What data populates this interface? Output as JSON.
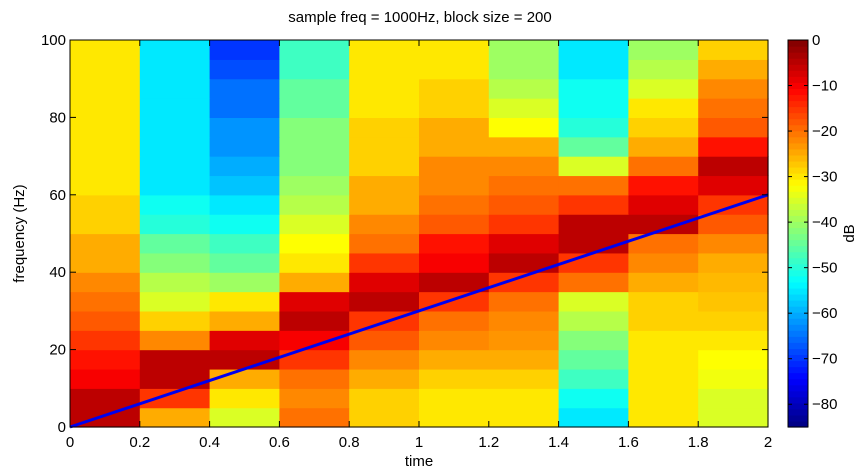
{
  "chart_data": {
    "type": "heatmap",
    "title": "sample freq = 1000Hz, block size = 200",
    "xlabel": "time",
    "ylabel": "frequency (Hz)",
    "xlim": [
      0,
      2
    ],
    "ylim": [
      0,
      100
    ],
    "x_ticks": [
      0,
      0.2,
      0.4,
      0.6,
      0.8,
      1,
      1.2,
      1.4,
      1.6,
      1.8,
      2
    ],
    "y_ticks": [
      0,
      20,
      40,
      60,
      80,
      100
    ],
    "x_tick_labels": [
      "0",
      "0.2",
      "0.4",
      "0.6",
      "0.8",
      "1",
      "1.2",
      "1.4",
      "1.6",
      "1.8",
      "2"
    ],
    "y_tick_labels": [
      "0",
      "20",
      "40",
      "60",
      "80",
      "100"
    ],
    "time_bins": [
      0,
      0.2,
      0.4,
      0.6,
      0.8,
      1,
      1.2,
      1.4,
      1.6,
      1.8,
      2
    ],
    "freq_bin_hz": 5,
    "colorbar": {
      "label": "dB",
      "colormap": "jet",
      "range": [
        -85,
        0
      ],
      "ticks": [
        0,
        -10,
        -20,
        -30,
        -40,
        -50,
        -60,
        -70,
        -80
      ],
      "tick_labels": [
        "0",
        "−10",
        "−20",
        "−30",
        "−40",
        "−50",
        "−60",
        "−70",
        "−80"
      ]
    },
    "z_db": [
      [
        -5,
        -25,
        -35,
        -20,
        -28,
        -30,
        -30,
        -55,
        -30,
        -35
      ],
      [
        -5,
        -15,
        -30,
        -22,
        -28,
        -30,
        -30,
        -52,
        -30,
        -35
      ],
      [
        -10,
        -5,
        -25,
        -20,
        -25,
        -28,
        -28,
        -48,
        -30,
        -33
      ],
      [
        -12,
        -5,
        -5,
        -15,
        -22,
        -25,
        -25,
        -45,
        -30,
        -32
      ],
      [
        -15,
        -22,
        -8,
        -10,
        -18,
        -22,
        -23,
        -42,
        -30,
        -30
      ],
      [
        -18,
        -28,
        -25,
        -5,
        -15,
        -20,
        -22,
        -38,
        -28,
        -28
      ],
      [
        -20,
        -35,
        -30,
        -8,
        -5,
        -15,
        -20,
        -35,
        -28,
        -27
      ],
      [
        -22,
        -38,
        -40,
        -25,
        -8,
        -5,
        -15,
        -20,
        -25,
        -26
      ],
      [
        -25,
        -42,
        -45,
        -30,
        -15,
        -10,
        -5,
        -15,
        -22,
        -25
      ],
      [
        -25,
        -45,
        -48,
        -32,
        -20,
        -12,
        -8,
        -5,
        -20,
        -22
      ],
      [
        -28,
        -50,
        -52,
        -35,
        -22,
        -18,
        -15,
        -5,
        -5,
        -18
      ],
      [
        -28,
        -52,
        -55,
        -38,
        -25,
        -20,
        -18,
        -15,
        -8,
        -15
      ],
      [
        -30,
        -55,
        -58,
        -40,
        -25,
        -22,
        -20,
        -20,
        -12,
        -8
      ],
      [
        -30,
        -55,
        -60,
        -42,
        -28,
        -22,
        -22,
        -35,
        -20,
        -5
      ],
      [
        -30,
        -55,
        -62,
        -42,
        -28,
        -25,
        -25,
        -45,
        -25,
        -12
      ],
      [
        -30,
        -55,
        -62,
        -42,
        -28,
        -25,
        -32,
        -50,
        -28,
        -18
      ],
      [
        -30,
        -55,
        -65,
        -45,
        -30,
        -28,
        -35,
        -52,
        -30,
        -20
      ],
      [
        -30,
        -55,
        -65,
        -45,
        -30,
        -28,
        -38,
        -52,
        -35,
        -22
      ],
      [
        -30,
        -55,
        -68,
        -48,
        -30,
        -30,
        -40,
        -55,
        -38,
        -25
      ],
      [
        -30,
        -55,
        -70,
        -48,
        -30,
        -30,
        -40,
        -55,
        -40,
        -28
      ]
    ],
    "series": [
      {
        "type": "line",
        "color": "#0000ee",
        "x": [
          0,
          2
        ],
        "y": [
          0,
          60
        ]
      }
    ]
  }
}
